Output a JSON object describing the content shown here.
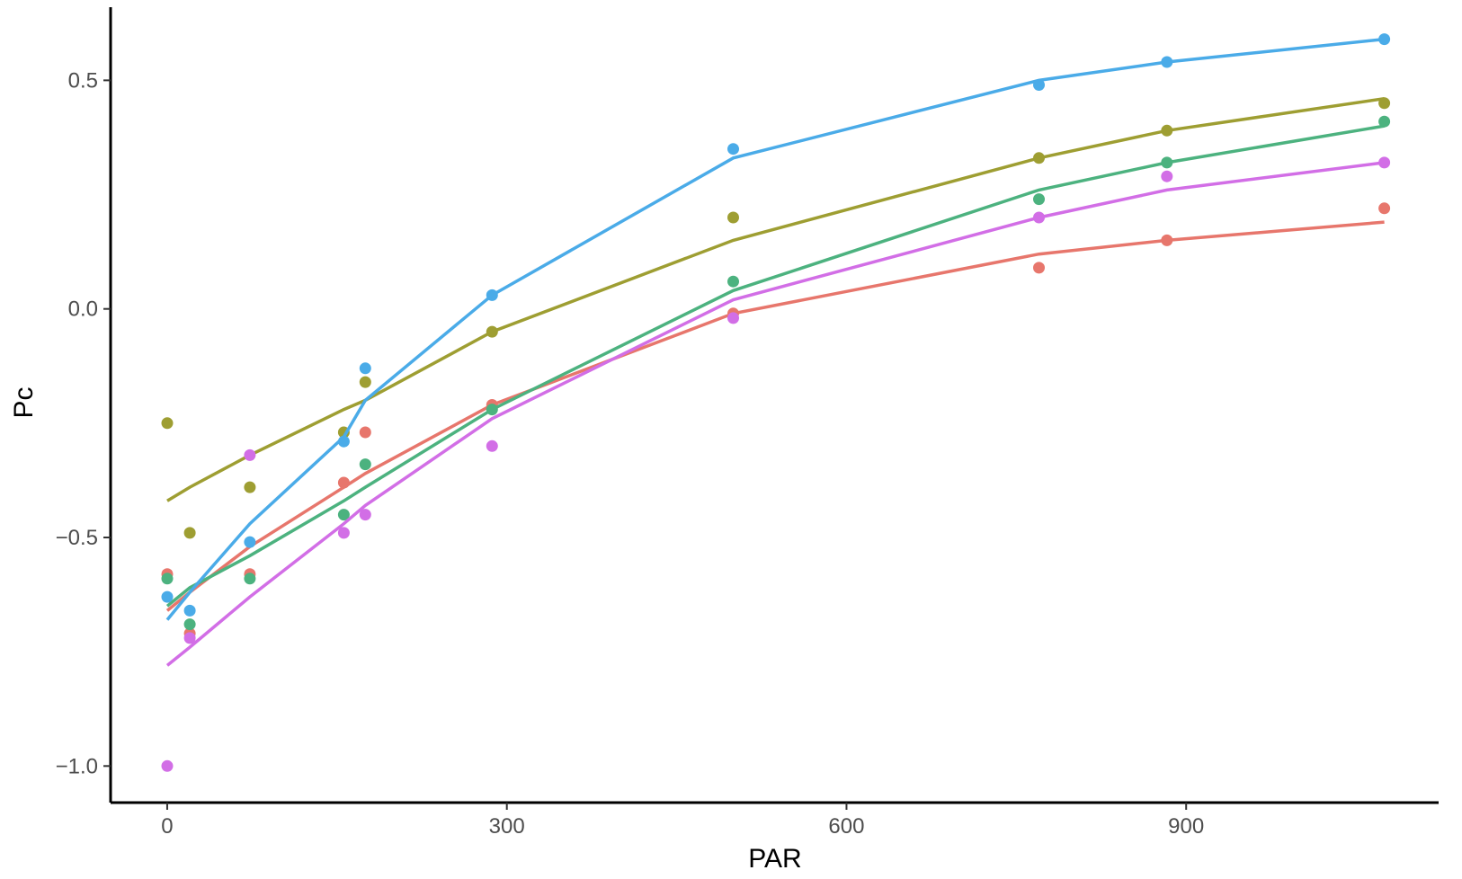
{
  "chart_data": {
    "type": "scatter",
    "title": "",
    "xlabel": "PAR",
    "ylabel": "Pc",
    "xlim": [
      -50,
      1123
    ],
    "ylim": [
      -1.08,
      0.66
    ],
    "xticks": [
      0,
      300,
      600,
      900
    ],
    "xtick_labels": [
      "0",
      "300",
      "600",
      "900"
    ],
    "yticks": [
      -1.0,
      -0.5,
      0.0,
      0.5
    ],
    "ytick_labels": [
      "−1.0",
      "−0.5",
      "0.0",
      "0.5"
    ],
    "grid": false,
    "legend": "none",
    "series": [
      {
        "color": "#E7766C",
        "points": [
          [
            0,
            -0.58
          ],
          [
            20,
            -0.71
          ],
          [
            73,
            -0.58
          ],
          [
            156,
            -0.38
          ],
          [
            175,
            -0.27
          ],
          [
            287,
            -0.21
          ],
          [
            500,
            -0.01
          ],
          [
            770,
            0.09
          ],
          [
            883,
            0.15
          ],
          [
            1075,
            0.22
          ]
        ],
        "fit": [
          [
            0,
            -0.66
          ],
          [
            20,
            -0.62
          ],
          [
            73,
            -0.52
          ],
          [
            156,
            -0.39
          ],
          [
            175,
            -0.36
          ],
          [
            287,
            -0.21
          ],
          [
            500,
            -0.01
          ],
          [
            770,
            0.12
          ],
          [
            883,
            0.15
          ],
          [
            1075,
            0.19
          ]
        ]
      },
      {
        "color": "#9E9E32",
        "points": [
          [
            0,
            -0.25
          ],
          [
            20,
            -0.49
          ],
          [
            73,
            -0.39
          ],
          [
            156,
            -0.27
          ],
          [
            175,
            -0.16
          ],
          [
            287,
            -0.05
          ],
          [
            500,
            0.2
          ],
          [
            770,
            0.33
          ],
          [
            883,
            0.39
          ],
          [
            1075,
            0.45
          ]
        ],
        "fit": [
          [
            0,
            -0.42
          ],
          [
            20,
            -0.39
          ],
          [
            73,
            -0.32
          ],
          [
            156,
            -0.22
          ],
          [
            175,
            -0.2
          ],
          [
            287,
            -0.05
          ],
          [
            500,
            0.15
          ],
          [
            770,
            0.33
          ],
          [
            883,
            0.39
          ],
          [
            1075,
            0.46
          ]
        ]
      },
      {
        "color": "#4CB27F",
        "points": [
          [
            0,
            -0.59
          ],
          [
            20,
            -0.69
          ],
          [
            73,
            -0.59
          ],
          [
            156,
            -0.45
          ],
          [
            175,
            -0.34
          ],
          [
            287,
            -0.22
          ],
          [
            500,
            0.06
          ],
          [
            770,
            0.24
          ],
          [
            883,
            0.32
          ],
          [
            1075,
            0.41
          ]
        ],
        "fit": [
          [
            0,
            -0.65
          ],
          [
            20,
            -0.61
          ],
          [
            73,
            -0.54
          ],
          [
            156,
            -0.42
          ],
          [
            175,
            -0.39
          ],
          [
            287,
            -0.22
          ],
          [
            500,
            0.04
          ],
          [
            770,
            0.26
          ],
          [
            883,
            0.32
          ],
          [
            1075,
            0.4
          ]
        ]
      },
      {
        "color": "#4AABE8",
        "points": [
          [
            0,
            -0.63
          ],
          [
            20,
            -0.66
          ],
          [
            73,
            -0.51
          ],
          [
            156,
            -0.29
          ],
          [
            175,
            -0.13
          ],
          [
            287,
            0.03
          ],
          [
            500,
            0.35
          ],
          [
            770,
            0.49
          ],
          [
            883,
            0.54
          ],
          [
            1075,
            0.59
          ]
        ],
        "fit": [
          [
            0,
            -0.68
          ],
          [
            20,
            -0.62
          ],
          [
            73,
            -0.47
          ],
          [
            156,
            -0.28
          ],
          [
            175,
            -0.2
          ],
          [
            287,
            0.03
          ],
          [
            500,
            0.33
          ],
          [
            770,
            0.5
          ],
          [
            883,
            0.54
          ],
          [
            1075,
            0.59
          ]
        ]
      },
      {
        "color": "#D26EE6",
        "points": [
          [
            0,
            -1.0
          ],
          [
            20,
            -0.72
          ],
          [
            73,
            -0.32
          ],
          [
            156,
            -0.49
          ],
          [
            175,
            -0.45
          ],
          [
            287,
            -0.3
          ],
          [
            500,
            -0.02
          ],
          [
            770,
            0.2
          ],
          [
            883,
            0.29
          ],
          [
            1075,
            0.32
          ]
        ],
        "fit": [
          [
            0,
            -0.78
          ],
          [
            20,
            -0.74
          ],
          [
            73,
            -0.63
          ],
          [
            156,
            -0.47
          ],
          [
            175,
            -0.43
          ],
          [
            287,
            -0.24
          ],
          [
            500,
            0.02
          ],
          [
            770,
            0.2
          ],
          [
            883,
            0.26
          ],
          [
            1075,
            0.32
          ]
        ]
      }
    ]
  }
}
